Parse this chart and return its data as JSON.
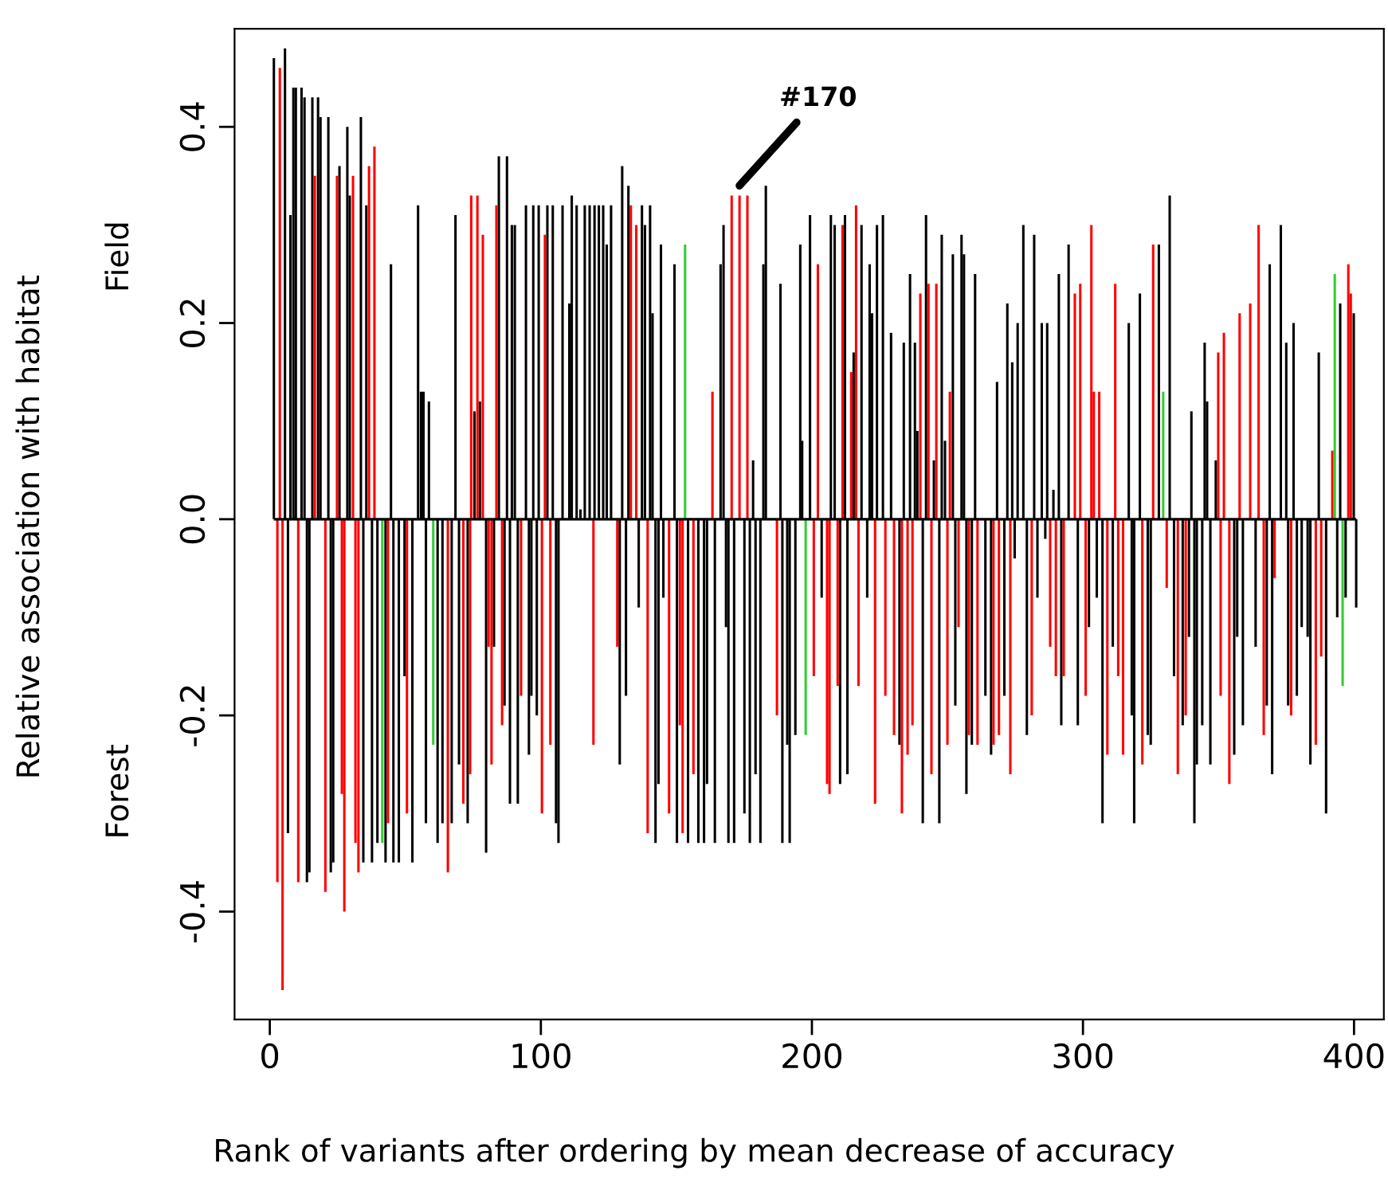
{
  "chart_data": {
    "type": "bar",
    "xlabel": "Rank of variants after ordering by mean decrease of accuracy",
    "ylabel": "Relative association with habitat",
    "annotations": [
      "Field",
      "Forest",
      {
        "text": "#170",
        "x": 170,
        "y": 0.33
      }
    ],
    "xlim": [
      -13,
      411
    ],
    "ylim": [
      -0.51,
      0.5
    ],
    "xticks": [
      0,
      100,
      200,
      300,
      400
    ],
    "yticks": [
      -0.4,
      -0.2,
      {
        "value": 0,
        "label": "0.0"
      },
      0.2,
      0.4
    ],
    "grid": false,
    "legend": false,
    "ref_lines": [
      {
        "axis": "y",
        "value": 0,
        "color": "#000000"
      }
    ],
    "series": [
      {
        "color": "#000000",
        "x": [
          1.5,
          5.6,
          6.7,
          7.6,
          8.7,
          9.6,
          11.7,
          12.8,
          13.7,
          14.6,
          15.7,
          17.8,
          18.7,
          21.6,
          22.5,
          23.4,
          25.7,
          28.6,
          29.5,
          33.6,
          34.5,
          35.6,
          37.7,
          39.7,
          42.7,
          44.7,
          45.6,
          47.6,
          49.7,
          52.6,
          54.7,
          55.8,
          56.7,
          57.6,
          58.7,
          61.9,
          63.7,
          67.1,
          68.5,
          69.8,
          73.0,
          75.5,
          77.5,
          79.8,
          82.7,
          84.5,
          86.6,
          87.5,
          88.6,
          89.3,
          90.4,
          91.5,
          94.5,
          95.6,
          96.5,
          97.2,
          98.5,
          99.2,
          102.4,
          104.4,
          105.6,
          106.5,
          108.0,
          110.5,
          111.4,
          113.2,
          114.6,
          116.2,
          118.0,
          119.8,
          121.4,
          123.0,
          124.3,
          125.9,
          129.1,
          130.0,
          131.4,
          132.3,
          136.1,
          137.3,
          138.4,
          140.3,
          141.2,
          142.3,
          143.4,
          144.3,
          145.2,
          148.9,
          149.3,
          150.2,
          154.3,
          158.1,
          160.2,
          161.3,
          164.2,
          166.3,
          167.4,
          168.3,
          169.2,
          171.3,
          175.1,
          177.1,
          178.3,
          179.2,
          181.0,
          182.1,
          183.0,
          188.4,
          189.1,
          190.9,
          191.8,
          193.9,
          195.7,
          196.4,
          199.3,
          203.6,
          207.0,
          208.4,
          210.4,
          212.2,
          213.1,
          215.4,
          218.3,
          220.4,
          221.3,
          222.2,
          224.0,
          226.2,
          229.2,
          232.3,
          233.9,
          236.2,
          238.0,
          238.9,
          240.9,
          242.1,
          245.0,
          247.0,
          247.9,
          249.1,
          252.0,
          252.9,
          255.2,
          256.1,
          257.0,
          259.0,
          260.2,
          264.0,
          266.1,
          268.3,
          271.0,
          272.1,
          273.9,
          274.8,
          275.9,
          278.0,
          279.3,
          282.0,
          283.2,
          284.8,
          286.1,
          286.8,
          289.1,
          291.1,
          292.0,
          294.7,
          298.1,
          302.2,
          305.1,
          307.2,
          311.0,
          316.9,
          318.0,
          318.9,
          321.0,
          323.9,
          325.0,
          328.0,
          332.0,
          333.6,
          336.8,
          339.1,
          340.0,
          341.1,
          342.0,
          344.0,
          344.9,
          345.8,
          347.0,
          349.0,
          355.8,
          356.9,
          359.0,
          363.7,
          367.8,
          368.9,
          369.8,
          373.0,
          375.0,
          375.7,
          377.7,
          378.9,
          380.7,
          382.9,
          383.9,
          387.0,
          389.7,
          393.8,
          394.9,
          396.9,
          399.9,
          400.8
        ],
        "values": [
          0.47,
          0.48,
          -0.32,
          0.31,
          0.44,
          0.44,
          0.44,
          0.43,
          -0.37,
          -0.36,
          0.43,
          0.43,
          0.41,
          0.41,
          -0.36,
          -0.35,
          0.36,
          0.4,
          0.33,
          0.41,
          -0.35,
          0.32,
          -0.35,
          -0.33,
          -0.35,
          0.26,
          -0.35,
          -0.35,
          -0.16,
          -0.35,
          0.32,
          0.13,
          0.13,
          -0.31,
          0.12,
          -0.33,
          -0.31,
          -0.31,
          0.31,
          -0.25,
          -0.31,
          0.11,
          0.12,
          -0.34,
          -0.13,
          0.37,
          -0.19,
          0.37,
          -0.29,
          0.3,
          0.3,
          -0.29,
          0.32,
          -0.24,
          -0.18,
          0.32,
          -0.2,
          0.32,
          0.32,
          0.32,
          -0.31,
          -0.33,
          0.32,
          0.22,
          0.33,
          0.32,
          0.01,
          0.32,
          0.32,
          0.32,
          0.32,
          0.32,
          0.28,
          0.32,
          -0.25,
          0.36,
          -0.18,
          0.34,
          -0.09,
          0.32,
          0.3,
          0.32,
          0.21,
          -0.33,
          -0.27,
          0.28,
          -0.08,
          null,
          0.26,
          -0.33,
          -0.33,
          -0.33,
          -0.33,
          -0.27,
          -0.33,
          0.26,
          0.3,
          -0.11,
          -0.33,
          -0.33,
          -0.3,
          -0.33,
          0.06,
          -0.26,
          -0.33,
          0.26,
          0.34,
          0.24,
          -0.33,
          -0.23,
          -0.33,
          -0.22,
          0.28,
          0.08,
          0.31,
          -0.08,
          0.31,
          0.3,
          -0.27,
          0.31,
          -0.26,
          0.17,
          0.3,
          -0.08,
          0.26,
          0.21,
          0.3,
          0.31,
          0.19,
          -0.23,
          0.18,
          0.25,
          0.18,
          0.09,
          -0.31,
          0.31,
          0.06,
          -0.31,
          0.29,
          0.08,
          0.27,
          -0.19,
          0.29,
          0.27,
          -0.28,
          -0.23,
          0.25,
          -0.18,
          -0.24,
          0.14,
          -0.18,
          0.22,
          0.16,
          -0.04,
          0.2,
          0.3,
          -0.22,
          0.29,
          -0.08,
          0.2,
          -0.02,
          0.2,
          0.03,
          0.25,
          -0.21,
          0.28,
          -0.21,
          -0.11,
          -0.08,
          -0.31,
          -0.13,
          0.2,
          -0.2,
          -0.31,
          0.23,
          -0.22,
          -0.23,
          0.28,
          0.33,
          -0.16,
          -0.21,
          -0.12,
          0.11,
          -0.31,
          -0.25,
          -0.21,
          0.18,
          0.12,
          -0.25,
          0.06,
          -0.24,
          -0.12,
          -0.21,
          -0.13,
          -0.19,
          0.26,
          -0.26,
          0.3,
          0.18,
          -0.19,
          0.2,
          -0.18,
          -0.11,
          -0.12,
          -0.25,
          0.17,
          -0.3,
          -0.1,
          0.22,
          -0.08,
          0.21,
          -0.09
        ]
      },
      {
        "color": "#ff0000",
        "x": [
          2.8,
          3.7,
          4.7,
          10.5,
          16.6,
          20.5,
          24.8,
          26.6,
          27.5,
          30.7,
          31.6,
          32.7,
          36.6,
          38.6,
          43.6,
          50.6,
          65.7,
          71.4,
          73.9,
          74.3,
          76.6,
          78.6,
          80.7,
          81.8,
          83.6,
          85.7,
          92.7,
          100.4,
          101.5,
          103.5,
          119.4,
          128.2,
          133.2,
          135.2,
          139.4,
          147.3,
          151.3,
          152.3,
          156.3,
          163.3,
          170.4,
          173.3,
          176.2,
          187.1,
          200.7,
          202.2,
          205.6,
          206.5,
          209.5,
          211.3,
          214.5,
          216.3,
          217.2,
          223.3,
          227.1,
          230.3,
          233.2,
          235.3,
          237.1,
          240.0,
          243.0,
          244.1,
          245.9,
          250.0,
          250.9,
          254.1,
          257.9,
          261.1,
          267.0,
          269.0,
          273.2,
          281.1,
          287.9,
          290.0,
          292.9,
          297.0,
          299.0,
          301.0,
          303.1,
          304.0,
          306.0,
          309.0,
          311.9,
          313.0,
          314.8,
          321.9,
          325.9,
          330.9,
          335.0,
          337.9,
          349.9,
          350.8,
          352.0,
          354.0,
          357.8,
          361.7,
          364.8,
          366.7,
          370.7,
          376.8,
          385.9,
          387.9,
          392.0,
          397.9,
          398.8
        ],
        "values": [
          -0.37,
          0.46,
          -0.48,
          -0.37,
          0.35,
          -0.38,
          0.35,
          -0.28,
          -0.4,
          0.35,
          -0.33,
          -0.36,
          0.36,
          0.38,
          -0.31,
          -0.3,
          -0.36,
          -0.29,
          -0.26,
          0.33,
          0.33,
          0.29,
          -0.13,
          -0.25,
          0.32,
          -0.21,
          -0.18,
          -0.3,
          0.29,
          -0.23,
          -0.23,
          -0.13,
          0.32,
          0.3,
          -0.32,
          -0.3,
          -0.21,
          -0.32,
          -0.26,
          0.13,
          0.33,
          0.33,
          0.33,
          -0.2,
          -0.16,
          0.26,
          -0.27,
          -0.28,
          -0.17,
          0.3,
          0.15,
          0.32,
          -0.17,
          -0.29,
          -0.18,
          -0.22,
          -0.3,
          -0.24,
          -0.21,
          0.23,
          0.24,
          -0.26,
          0.24,
          -0.23,
          0.13,
          -0.11,
          -0.22,
          -0.23,
          -0.23,
          -0.22,
          -0.26,
          -0.2,
          -0.13,
          -0.16,
          -0.16,
          0.23,
          0.24,
          -0.18,
          0.3,
          0.13,
          0.13,
          -0.24,
          0.24,
          -0.16,
          -0.24,
          -0.25,
          0.28,
          -0.07,
          -0.26,
          -0.2,
          0.17,
          -0.18,
          0.19,
          -0.27,
          0.21,
          0.22,
          0.3,
          -0.22,
          -0.06,
          -0.2,
          -0.23,
          -0.14,
          0.07,
          0.26,
          0.23
        ]
      },
      {
        "color": "#33cc33",
        "x": [
          41.5,
          60.3,
          153.2,
          197.7,
          329.6,
          392.9,
          395.8
        ],
        "values": [
          -0.33,
          -0.23,
          0.28,
          -0.22,
          0.13,
          0.25,
          -0.17
        ]
      }
    ]
  }
}
